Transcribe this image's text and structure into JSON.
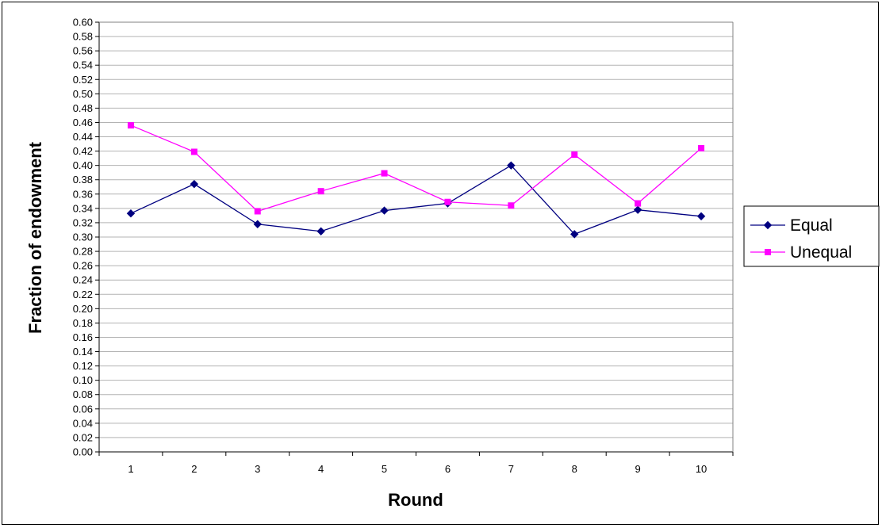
{
  "chart_data": {
    "type": "line",
    "title": "",
    "xlabel": "Round",
    "ylabel": "Fraction of endowment",
    "categories": [
      "1",
      "2",
      "3",
      "4",
      "5",
      "6",
      "7",
      "8",
      "9",
      "10"
    ],
    "ylim": [
      0,
      0.6
    ],
    "ytick_step": 0.02,
    "ytick_labels": [
      "0.00",
      "0.02",
      "0.04",
      "0.06",
      "0.08",
      "0.10",
      "0.12",
      "0.14",
      "0.16",
      "0.18",
      "0.20",
      "0.22",
      "0.24",
      "0.26",
      "0.28",
      "0.30",
      "0.32",
      "0.34",
      "0.36",
      "0.38",
      "0.40",
      "0.42",
      "0.44",
      "0.46",
      "0.48",
      "0.50",
      "0.52",
      "0.54",
      "0.56",
      "0.58",
      "0.60"
    ],
    "grid": true,
    "legend_position": "right",
    "series": [
      {
        "name": "Equal",
        "color": "#000080",
        "marker": "diamond",
        "values": [
          0.333,
          0.374,
          0.318,
          0.308,
          0.337,
          0.347,
          0.4,
          0.304,
          0.338,
          0.329
        ]
      },
      {
        "name": "Unequal",
        "color": "#ff00ff",
        "marker": "square",
        "values": [
          0.456,
          0.419,
          0.336,
          0.364,
          0.389,
          0.349,
          0.344,
          0.415,
          0.347,
          0.424
        ]
      }
    ]
  }
}
